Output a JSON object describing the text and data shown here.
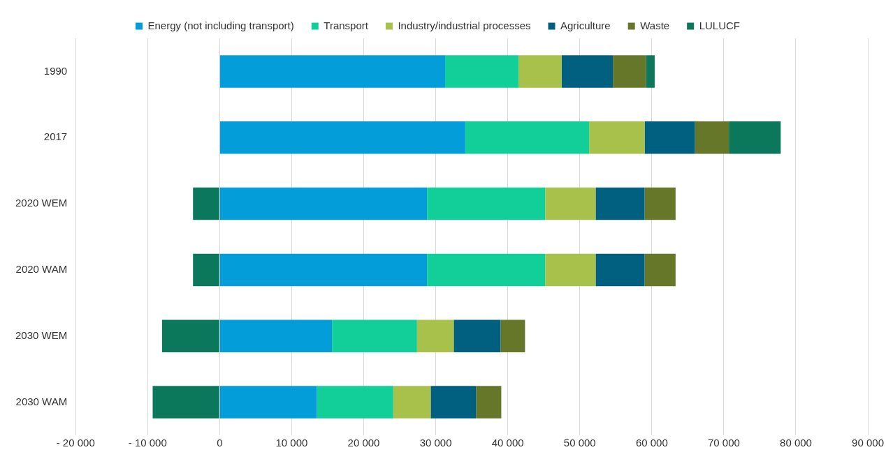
{
  "chart_data": {
    "type": "bar",
    "orientation": "horizontal",
    "stacked": true,
    "categories": [
      "1990",
      "2017",
      "2020 WEM",
      "2020 WAM",
      "2030 WEM",
      "2030 WAM"
    ],
    "series": [
      {
        "name": "Energy (not including transport)",
        "color": "#039dd9",
        "values": [
          31300,
          34100,
          28800,
          28800,
          15600,
          13500
        ]
      },
      {
        "name": "Transport",
        "color": "#12cf9a",
        "values": [
          10200,
          17200,
          16400,
          16400,
          11800,
          10600
        ]
      },
      {
        "name": "Industry/industrial processes",
        "color": "#a8c14b",
        "values": [
          6000,
          7700,
          7000,
          7000,
          5100,
          5200
        ]
      },
      {
        "name": "Agriculture",
        "color": "#015f80",
        "values": [
          7100,
          7000,
          6800,
          6800,
          6500,
          6300
        ]
      },
      {
        "name": "Waste",
        "color": "#66772a",
        "values": [
          4600,
          4700,
          4300,
          4300,
          3400,
          3500
        ]
      },
      {
        "name": "LULUCF",
        "color": "#0b785c",
        "values": [
          1200,
          7200,
          -3700,
          -3700,
          -8000,
          -9300
        ]
      }
    ],
    "xlim": [
      -20000,
      90000
    ],
    "xticks": [
      {
        "value": -20000,
        "label": "- 20 000"
      },
      {
        "value": -10000,
        "label": "- 10 000"
      },
      0,
      {
        "value": 10000,
        "label": "10 000"
      },
      {
        "value": 20000,
        "label": "20 000"
      },
      {
        "value": 30000,
        "label": "30 000"
      },
      {
        "value": 40000,
        "label": "40 000"
      },
      {
        "value": 50000,
        "label": "50 000"
      },
      {
        "value": 60000,
        "label": "60 000"
      },
      {
        "value": 70000,
        "label": "70 000"
      },
      {
        "value": 80000,
        "label": "80 000"
      },
      {
        "value": 90000,
        "label": "90 000"
      }
    ],
    "grid": "x",
    "legend": "top"
  }
}
